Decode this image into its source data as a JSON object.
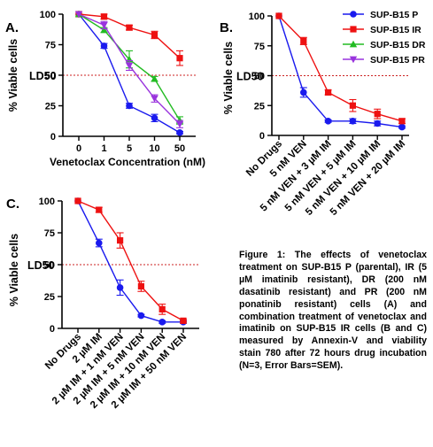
{
  "legend": [
    {
      "label": "SUP-B15 P",
      "color": "#1a1aee",
      "marker": "circle"
    },
    {
      "label": "SUP-B15 IR",
      "color": "#ee1111",
      "marker": "square"
    },
    {
      "label": "SUP-B15 DR",
      "color": "#22bb22",
      "marker": "triangle-up"
    },
    {
      "label": "SUP-B15 PR",
      "color": "#9933dd",
      "marker": "triangle-down"
    }
  ],
  "caption": "Figure 1: The effects of venetoclax treatment on SUP-B15 P (parental), IR (5 µM imatinib resistant), DR (200 nM dasatinib resistant) and PR (200 nM ponatinib resistant) cells (A) and combination treatment of venetoclax and imatinib on SUP-B15 IR cells (B and C) measured by Annexin-V and viability stain 780 after 72 hours drug incubation (N=3, Error Bars=SEM).",
  "chart_data": [
    {
      "panel": "A.",
      "type": "line",
      "xlabel": "Venetoclax Concentration (nM)",
      "ylabel": "% Viable cells",
      "categories": [
        "0",
        "1",
        "5",
        "10",
        "50"
      ],
      "ylim": [
        0,
        100
      ],
      "yticks": [
        0,
        25,
        50,
        75,
        100
      ],
      "reference_line": {
        "y": 50,
        "label": "LD50"
      },
      "series": [
        {
          "name": "SUP-B15 P",
          "color": "#1a1aee",
          "marker": "circle",
          "values": [
            100,
            74,
            25,
            15,
            3
          ],
          "errors": [
            0,
            2,
            2,
            3,
            1
          ]
        },
        {
          "name": "SUP-B15 IR",
          "color": "#ee1111",
          "marker": "square",
          "values": [
            100,
            98,
            89,
            83,
            64
          ],
          "errors": [
            0,
            2,
            2,
            3,
            6
          ]
        },
        {
          "name": "SUP-B15 DR",
          "color": "#22bb22",
          "marker": "triangle-up",
          "values": [
            100,
            87,
            63,
            47,
            13
          ],
          "errors": [
            0,
            2,
            7,
            2,
            3
          ]
        },
        {
          "name": "SUP-B15 PR",
          "color": "#9933dd",
          "marker": "triangle-down",
          "values": [
            100,
            91,
            58,
            31,
            10
          ],
          "errors": [
            0,
            3,
            4,
            3,
            3
          ]
        }
      ]
    },
    {
      "panel": "B.",
      "type": "line",
      "ylabel": "% Viable cells",
      "categories": [
        "No Drugs",
        "5 nM VEN",
        "5 nM VEN + 3 µM IM",
        "5 nM VEN + 5 µM IM",
        "5 nM VEN + 10 µM IM",
        "5 nM VEN + 20 µM IM"
      ],
      "ylim": [
        0,
        100
      ],
      "yticks": [
        0,
        25,
        50,
        75,
        100
      ],
      "reference_line": {
        "y": 50,
        "label": "LD50"
      },
      "series": [
        {
          "color": "#1a1aee",
          "marker": "circle",
          "values": [
            100,
            36,
            12,
            12,
            10,
            7
          ],
          "errors": [
            0,
            4,
            1,
            2,
            2,
            1
          ]
        },
        {
          "color": "#ee1111",
          "marker": "square",
          "values": [
            100,
            79,
            36,
            25,
            18,
            12
          ],
          "errors": [
            0,
            3,
            2,
            5,
            4,
            2
          ]
        }
      ]
    },
    {
      "panel": "C.",
      "type": "line",
      "ylabel": "% Viable cells",
      "categories": [
        "No Drugs",
        "2 µM IM",
        "2 µM IM + 1 nM VEN",
        "2 µM IM + 5 nM VEN",
        "2 µM IM + 10 nM VEN",
        "2 µM IM + 50 nM VEN"
      ],
      "ylim": [
        0,
        100
      ],
      "yticks": [
        0,
        25,
        50,
        75,
        100
      ],
      "reference_line": {
        "y": 50,
        "label": "LD50"
      },
      "series": [
        {
          "color": "#1a1aee",
          "marker": "circle",
          "values": [
            100,
            67,
            32,
            10,
            5,
            5
          ],
          "errors": [
            0,
            3,
            6,
            1,
            1,
            1
          ]
        },
        {
          "color": "#ee1111",
          "marker": "square",
          "values": [
            100,
            93,
            69,
            33,
            15,
            6
          ],
          "errors": [
            0,
            2,
            6,
            4,
            4,
            1
          ]
        }
      ]
    }
  ]
}
